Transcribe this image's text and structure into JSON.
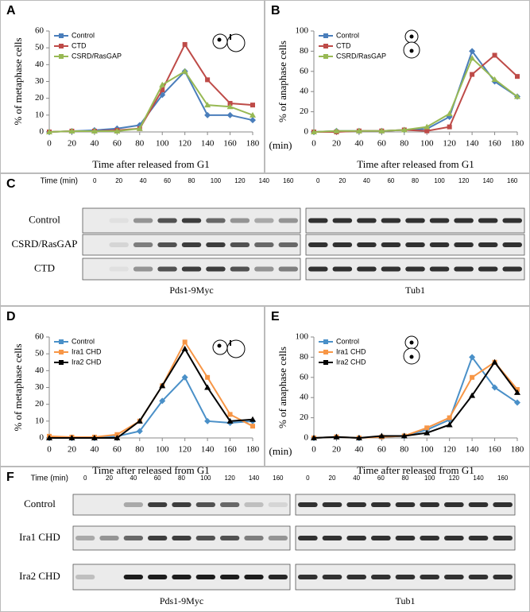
{
  "chart_data": [
    {
      "type": "line",
      "panel": "A",
      "xlabel": "Time after released from G1",
      "ylabel": "% of metaphase cells",
      "x": [
        0,
        20,
        40,
        60,
        80,
        100,
        120,
        140,
        160,
        180
      ],
      "xlim": [
        0,
        180
      ],
      "xticks": [
        0,
        20,
        40,
        60,
        80,
        100,
        120,
        140,
        160,
        180
      ],
      "ylim": [
        0,
        60
      ],
      "yticks": [
        0,
        10,
        20,
        30,
        40,
        50,
        60
      ],
      "series": [
        {
          "name": "Control",
          "color": "#4a7ebb",
          "marker": "diamond",
          "values": [
            0,
            0.5,
            1,
            2,
            4,
            22,
            36,
            10,
            10,
            7
          ]
        },
        {
          "name": "CTD",
          "color": "#be4b48",
          "marker": "square",
          "values": [
            0,
            0.5,
            0.5,
            1,
            2,
            25,
            52,
            31,
            17,
            16
          ]
        },
        {
          "name": "CSRD/RasGAP",
          "color": "#98b954",
          "marker": "triangle",
          "values": [
            0,
            0.5,
            0.5,
            0.5,
            2,
            28,
            36,
            16,
            15,
            10
          ]
        }
      ]
    },
    {
      "type": "line",
      "panel": "B",
      "xlabel": "Time after released from G1",
      "ylabel": "% of anaphase cells",
      "x_unit_label": "(min)",
      "x": [
        0,
        20,
        40,
        60,
        80,
        100,
        120,
        140,
        160,
        180
      ],
      "xlim": [
        0,
        180
      ],
      "xticks": [
        0,
        20,
        40,
        60,
        80,
        100,
        120,
        140,
        160,
        180
      ],
      "ylim": [
        0,
        100
      ],
      "yticks": [
        0,
        20,
        40,
        60,
        80,
        100
      ],
      "series": [
        {
          "name": "Control",
          "color": "#4a7ebb",
          "marker": "diamond",
          "values": [
            0,
            1,
            1,
            1,
            2,
            3,
            15,
            80,
            50,
            35
          ]
        },
        {
          "name": "CTD",
          "color": "#be4b48",
          "marker": "square",
          "values": [
            0,
            0,
            1,
            1,
            2,
            1,
            5,
            57,
            76,
            55
          ]
        },
        {
          "name": "CSRD/RasGAP",
          "color": "#98b954",
          "marker": "triangle",
          "values": [
            0,
            1,
            1,
            1,
            2,
            5,
            18,
            73,
            52,
            35
          ]
        }
      ]
    },
    {
      "type": "line",
      "panel": "D",
      "xlabel": "Time after released from G1",
      "ylabel": "% of metaphase cells",
      "x": [
        0,
        20,
        40,
        60,
        80,
        100,
        120,
        140,
        160,
        180
      ],
      "xlim": [
        0,
        180
      ],
      "xticks": [
        0,
        20,
        40,
        60,
        80,
        100,
        120,
        140,
        160,
        180
      ],
      "ylim": [
        0,
        60
      ],
      "yticks": [
        0,
        10,
        20,
        30,
        40,
        50,
        60
      ],
      "series": [
        {
          "name": "Control",
          "color": "#4a90c8",
          "marker": "diamond",
          "values": [
            0,
            0,
            0,
            1,
            4,
            22,
            36,
            10,
            9,
            10
          ]
        },
        {
          "name": "Ira1 CHD",
          "color": "#f79646",
          "marker": "square",
          "values": [
            1,
            0.5,
            0.5,
            2,
            10,
            31,
            57,
            36,
            14,
            7
          ]
        },
        {
          "name": "Ira2 CHD",
          "color": "#000000",
          "marker": "triangle",
          "values": [
            0,
            0,
            0,
            0,
            10,
            31,
            53,
            30,
            10,
            11
          ]
        }
      ]
    },
    {
      "type": "line",
      "panel": "E",
      "xlabel": "Time after released from G1",
      "ylabel": "% of anaphase cells",
      "x_unit_label": "(min)",
      "x": [
        0,
        20,
        40,
        60,
        80,
        100,
        120,
        140,
        160,
        180
      ],
      "xlim": [
        0,
        180
      ],
      "xticks": [
        0,
        20,
        40,
        60,
        80,
        100,
        120,
        140,
        160,
        180
      ],
      "ylim": [
        0,
        100
      ],
      "yticks": [
        0,
        20,
        40,
        60,
        80,
        100
      ],
      "series": [
        {
          "name": "Control",
          "color": "#4a90c8",
          "marker": "diamond",
          "values": [
            0,
            1,
            0,
            1,
            2,
            8,
            18,
            80,
            50,
            35
          ]
        },
        {
          "name": "Ira1 CHD",
          "color": "#f79646",
          "marker": "square",
          "values": [
            0,
            1,
            0,
            1,
            2,
            10,
            20,
            60,
            75,
            48
          ]
        },
        {
          "name": "Ira2 CHD",
          "color": "#000000",
          "marker": "triangle",
          "values": [
            0,
            1,
            0,
            2,
            2,
            5,
            13,
            42,
            75,
            45
          ]
        }
      ]
    }
  ],
  "blots": [
    {
      "panel": "C",
      "time_label": "Time (min)",
      "times": [
        "0",
        "20",
        "40",
        "60",
        "80",
        "100",
        "120",
        "140",
        "160"
      ],
      "rows": [
        "Control",
        "CSRD/RasGAP",
        "CTD"
      ],
      "captions": [
        "Pds1-9Myc",
        "Tub1"
      ]
    },
    {
      "panel": "F",
      "time_label": "Time (min)",
      "times": [
        "0",
        "20",
        "40",
        "60",
        "80",
        "100",
        "120",
        "140",
        "160"
      ],
      "rows": [
        "Control",
        "Ira1 CHD",
        "Ira2 CHD"
      ],
      "captions": [
        "Pds1-9Myc",
        "Tub1"
      ]
    }
  ]
}
